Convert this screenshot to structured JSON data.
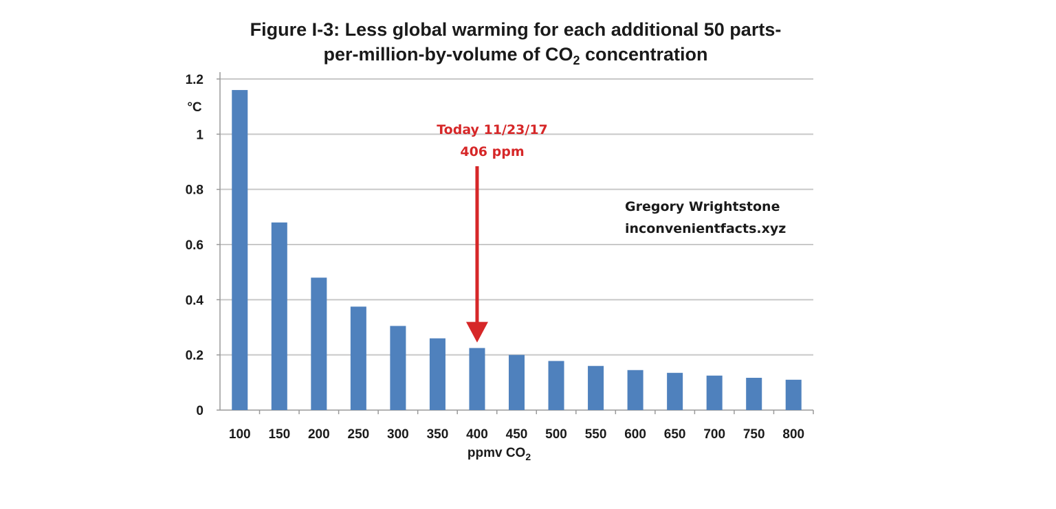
{
  "chart_data": {
    "type": "bar",
    "title_line1": "Figure I-3:  Less global warming for each additional 50 parts-",
    "title_line2_pre": "per-million-by-volume of CO",
    "title_line2_sub": "2",
    "title_line2_post": " concentration",
    "ylabel": "°C",
    "xlabel_pre": "ppmv CO",
    "xlabel_sub": "2",
    "categories": [
      "100",
      "150",
      "200",
      "250",
      "300",
      "350",
      "400",
      "450",
      "500",
      "550",
      "600",
      "650",
      "700",
      "750",
      "800"
    ],
    "values": [
      1.16,
      0.68,
      0.48,
      0.375,
      0.305,
      0.26,
      0.225,
      0.2,
      0.178,
      0.16,
      0.145,
      0.135,
      0.125,
      0.117,
      0.11
    ],
    "yticks": [
      "0",
      "0.2",
      "0.4",
      "0.6",
      "0.8",
      "1",
      "1.2"
    ],
    "ylim": [
      0,
      1.2
    ],
    "grid": true,
    "bar_color": "#4f81bd",
    "annotation": {
      "line1": "Today 11/23/17",
      "line2": "406 ppm",
      "target_category": "400",
      "color": "#d62728"
    },
    "credit": {
      "line1": "Gregory Wrightstone",
      "line2": "inconvenientfacts.xyz"
    }
  }
}
